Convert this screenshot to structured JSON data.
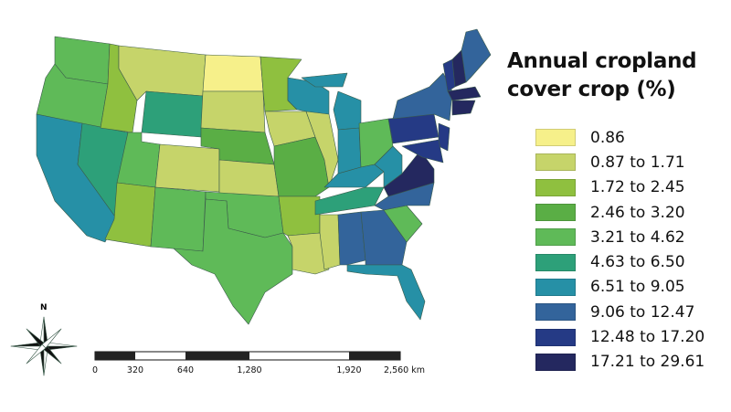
{
  "title": {
    "line1": "Annual cropland",
    "line2": "cover crop (%)"
  },
  "legend": [
    {
      "label": "0.86",
      "color": "#f6f08a"
    },
    {
      "label": "0.87 to 1.71",
      "color": "#c6d46a"
    },
    {
      "label": "1.72 to 2.45",
      "color": "#8fc03f"
    },
    {
      "label": "2.46 to 3.20",
      "color": "#5aae45"
    },
    {
      "label": "3.21 to 4.62",
      "color": "#5fba58"
    },
    {
      "label": "4.63 to 6.50",
      "color": "#2da079"
    },
    {
      "label": "6.51 to 9.05",
      "color": "#2690a6"
    },
    {
      "label": "9.06 to 12.47",
      "color": "#33649b"
    },
    {
      "label": "12.48 to 17.20",
      "color": "#253a85"
    },
    {
      "label": "17.21 to 29.61",
      "color": "#24285f"
    }
  ],
  "north_arrow": {
    "label": "N"
  },
  "scale_bar": {
    "unit": "km",
    "ticks": [
      "0",
      "320",
      "640",
      "1,280",
      "1,920",
      "2,560 km"
    ]
  }
}
